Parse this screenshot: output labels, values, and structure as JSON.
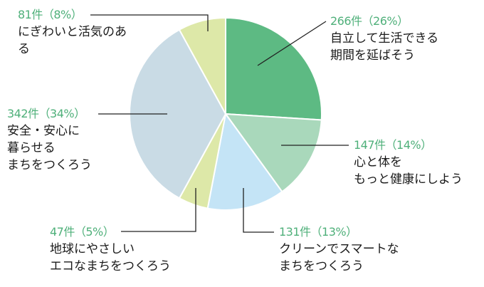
{
  "chart_data": {
    "type": "pie",
    "title": "",
    "start_angle_deg": 0,
    "direction": "clockwise",
    "center": [
      317,
      160
    ],
    "radius": 135,
    "slices": [
      {
        "count": "266件",
        "percent": 26,
        "label_top": "266件（26%）",
        "label": "自立して生活できる\n期間を延ばそう",
        "color": "#5dba83"
      },
      {
        "count": "147件",
        "percent": 14,
        "label_top": "147件（14%）",
        "label": "心と体を\nもっと健康にしよう",
        "color": "#a9d8bb"
      },
      {
        "count": "131件",
        "percent": 13,
        "label_top": "131件（13%）",
        "label": "クリーンでスマートな\nまちをつくろう",
        "color": "#c4e4f6"
      },
      {
        "count": "47件",
        "percent": 5,
        "label_top": "47件（5%）",
        "label": "地球にやさしい\nエコなまちをつくろう",
        "color": "#dde8a8"
      },
      {
        "count": "342件",
        "percent": 34,
        "label_top": "342件（34%）",
        "label": "安全・安心に\n暮らせる\nまちをつくろう",
        "color": "#c9dbe5"
      },
      {
        "count": "81件",
        "percent": 8,
        "label_top": "81件（8%）",
        "label": "にぎわいと活気のあ\nる",
        "color": "#dde8a8"
      }
    ]
  },
  "labels": {
    "s0": {
      "top": "266件（26%）",
      "desc": "自立して生活できる\n期間を延ばそう"
    },
    "s1": {
      "top": "147件（14%）",
      "desc": "心と体を\nもっと健康にしよう"
    },
    "s2": {
      "top": "131件（13%）",
      "desc": "クリーンでスマートな\nまちをつくろう"
    },
    "s3": {
      "top": "47件（5%）",
      "desc": "地球にやさしい\nエコなまちをつくろう"
    },
    "s4": {
      "top": "342件（34%）",
      "desc": "安全・安心に\n暮らせる\nまちをつくろう"
    },
    "s5": {
      "top": "81件（8%）",
      "desc": "にぎわいと活気のあ\nる"
    }
  },
  "colors": {
    "accent_text": "#4fb07a",
    "leader_line": "#222222"
  }
}
